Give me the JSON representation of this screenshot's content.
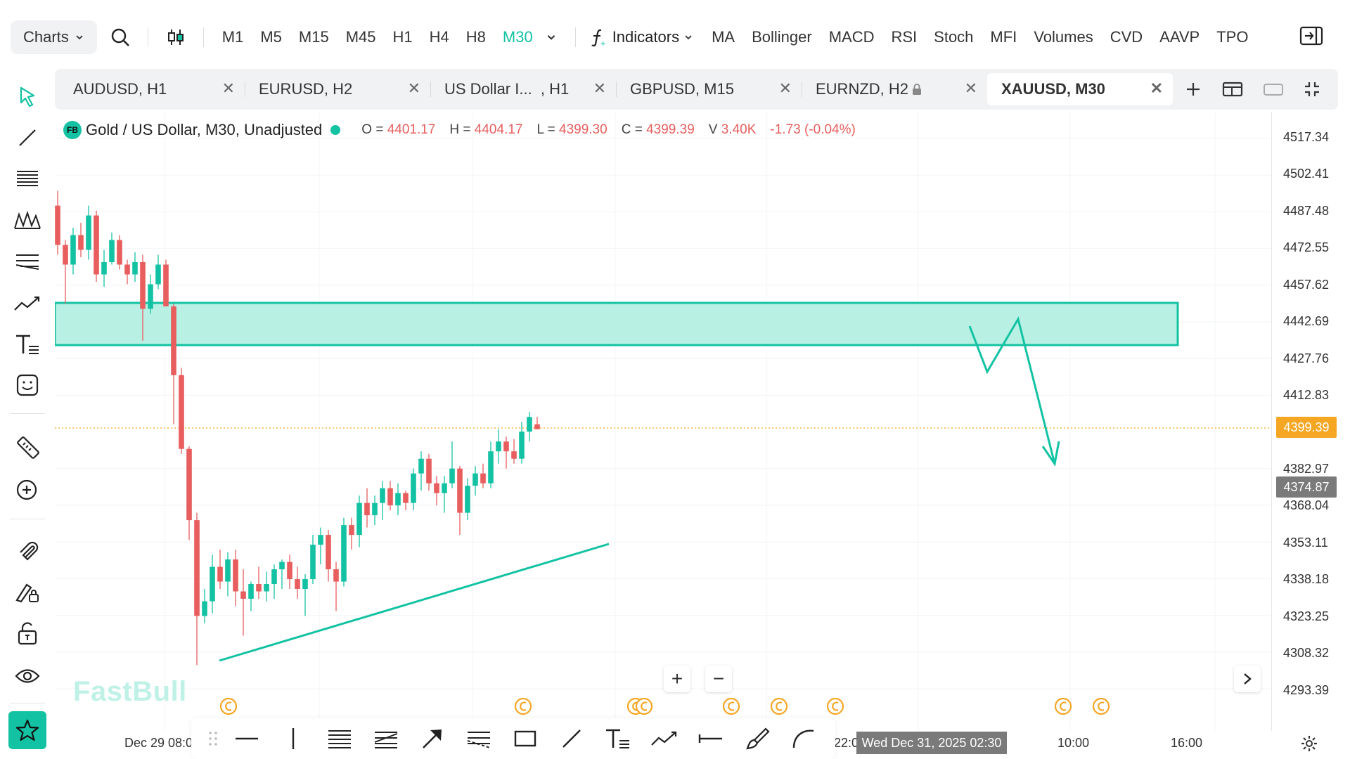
{
  "toolbar": {
    "charts_label": "Charts",
    "timeframes": [
      "M1",
      "M5",
      "M15",
      "M45",
      "H1",
      "H4",
      "H8",
      "M30"
    ],
    "active_timeframe": "M30",
    "indicators_label": "Indicators",
    "indicators": [
      "MA",
      "Bollinger",
      "MACD",
      "RSI",
      "Stoch",
      "MFI",
      "Volumes",
      "CVD",
      "AAVP",
      "TPO"
    ]
  },
  "tabs": [
    {
      "label": "AUDUSD, H1",
      "locked": false,
      "active": false
    },
    {
      "label": "EURUSD, H2",
      "locked": false,
      "active": false
    },
    {
      "label": "US Dollar I...  , H1",
      "locked": false,
      "active": false
    },
    {
      "label": "GBPUSD, M15",
      "locked": false,
      "active": false
    },
    {
      "label": "EURNZD, H2",
      "locked": true,
      "active": false
    },
    {
      "label": "XAUUSD, M30",
      "locked": false,
      "active": true
    }
  ],
  "legend": {
    "badge": "FB",
    "symbol": "Gold / US Dollar, M30, Unadjusted",
    "o_label": "O =",
    "o": "4401.17",
    "h_label": "H =",
    "h": "4404.17",
    "l_label": "L =",
    "l": "4399.30",
    "c_label": "C =",
    "c": "4399.39",
    "v_label": "V",
    "v": "3.40K",
    "change": "-1.73 (-0.04%)"
  },
  "price_axis": {
    "labels": [
      "4517.34",
      "4502.41",
      "4487.48",
      "4472.55",
      "4457.62",
      "4442.69",
      "4427.76",
      "4412.83",
      "4382.97",
      "4368.04",
      "4353.11",
      "4338.18",
      "4323.25",
      "4308.32",
      "4293.39"
    ],
    "last_price": "4399.39",
    "crosshair_price": "4374.87"
  },
  "time_axis": {
    "labels": [
      "Dec 29 08:0",
      "22:0",
      "10:00",
      "16:00"
    ],
    "crosshair_time": "Wed Dec 31, 2025 02:30"
  },
  "watermark": "FastBull",
  "colors": {
    "accent": "#13c2a3",
    "up": "#13c2a3",
    "down": "#e85d5d",
    "last_price": "#f5a623",
    "zone_fill": "#b4f0e3"
  },
  "candles": [
    [
      4490,
      4496,
      4470,
      4474
    ],
    [
      4474,
      4476,
      4450,
      4466
    ],
    [
      4466,
      4481,
      4462,
      4478
    ],
    [
      4478,
      4483,
      4469,
      4472
    ],
    [
      4472,
      4490,
      4468,
      4486
    ],
    [
      4486,
      4488,
      4459,
      4462
    ],
    [
      4462,
      4472,
      4457,
      4467
    ],
    [
      4467,
      4479,
      4466,
      4476
    ],
    [
      4476,
      4478,
      4464,
      4466
    ],
    [
      4466,
      4468,
      4458,
      4462
    ],
    [
      4462,
      4471,
      4459,
      4467
    ],
    [
      4467,
      4470,
      4435,
      4448
    ],
    [
      4448,
      4462,
      4446,
      4458
    ],
    [
      4458,
      4470,
      4456,
      4466
    ],
    [
      4466,
      4468,
      4449,
      4449
    ],
    [
      4449,
      4450,
      4401,
      4421
    ],
    [
      4421,
      4424,
      4389,
      4391
    ],
    [
      4391,
      4392,
      4354,
      4362
    ],
    [
      4362,
      4365,
      4303,
      4323
    ],
    [
      4323,
      4334,
      4320,
      4329
    ],
    [
      4329,
      4348,
      4324,
      4343
    ],
    [
      4343,
      4350,
      4334,
      4337
    ],
    [
      4337,
      4349,
      4331,
      4346
    ],
    [
      4346,
      4350,
      4327,
      4333
    ],
    [
      4333,
      4342,
      4315,
      4330
    ],
    [
      4330,
      4337,
      4325,
      4336
    ],
    [
      4336,
      4343,
      4330,
      4333
    ],
    [
      4333,
      4341,
      4329,
      4336
    ],
    [
      4336,
      4344,
      4330,
      4342
    ],
    [
      4342,
      4346,
      4334,
      4345
    ],
    [
      4345,
      4348,
      4334,
      4338
    ],
    [
      4338,
      4343,
      4330,
      4334
    ],
    [
      4334,
      4340,
      4323,
      4338
    ],
    [
      4338,
      4356,
      4336,
      4352
    ],
    [
      4352,
      4359,
      4344,
      4356
    ],
    [
      4356,
      4358,
      4337,
      4342
    ],
    [
      4342,
      4345,
      4325,
      4337
    ],
    [
      4337,
      4363,
      4335,
      4360
    ],
    [
      4360,
      4363,
      4350,
      4356
    ],
    [
      4356,
      4372,
      4351,
      4369
    ],
    [
      4369,
      4375,
      4359,
      4364
    ],
    [
      4364,
      4372,
      4360,
      4369
    ],
    [
      4369,
      4378,
      4362,
      4375
    ],
    [
      4375,
      4378,
      4366,
      4368
    ],
    [
      4368,
      4377,
      4364,
      4373
    ],
    [
      4373,
      4374,
      4366,
      4369
    ],
    [
      4369,
      4383,
      4366,
      4381
    ],
    [
      4381,
      4390,
      4374,
      4387
    ],
    [
      4387,
      4389,
      4374,
      4377
    ],
    [
      4377,
      4380,
      4368,
      4373
    ],
    [
      4373,
      4380,
      4365,
      4377
    ],
    [
      4377,
      4394,
      4375,
      4383
    ],
    [
      4383,
      4384,
      4356,
      4365
    ],
    [
      4365,
      4379,
      4362,
      4376
    ],
    [
      4376,
      4384,
      4372,
      4381
    ],
    [
      4381,
      4385,
      4375,
      4377
    ],
    [
      4377,
      4394,
      4375,
      4390
    ],
    [
      4390,
      4399,
      4385,
      4394
    ],
    [
      4394,
      4396,
      4383,
      4390
    ],
    [
      4390,
      4395,
      4385,
      4387
    ],
    [
      4387,
      4402,
      4385,
      4398
    ],
    [
      4398,
      4406,
      4394,
      4404
    ],
    [
      4401,
      4404,
      4399,
      4399
    ]
  ]
}
